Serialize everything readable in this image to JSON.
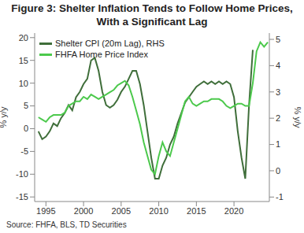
{
  "chart_data": {
    "type": "line",
    "title": "Figure 3: Shelter Inflation Tends to Follow Home Prices,\nWith a Significant Lag",
    "source": "Source: FHFA, BLS, TD Securities",
    "y_label": "% y/y",
    "y2_label": "% y/y",
    "legend": "upper left",
    "grid": false,
    "x": [
      1994,
      1994.5,
      1995,
      1995.5,
      1996,
      1996.5,
      1997,
      1997.5,
      1998,
      1998.5,
      1999,
      1999.5,
      2000,
      2000.5,
      2001,
      2001.5,
      2002,
      2002.5,
      2003,
      2003.5,
      2004,
      2004.5,
      2005,
      2005.5,
      2006,
      2006.5,
      2007,
      2007.5,
      2008,
      2008.5,
      2009,
      2009.5,
      2010,
      2010.5,
      2011,
      2011.5,
      2012,
      2012.5,
      2013,
      2013.5,
      2014,
      2014.5,
      2015,
      2015.5,
      2016,
      2016.5,
      2017,
      2017.5,
      2018,
      2018.5,
      2019,
      2019.5,
      2020,
      2020.5,
      2021,
      2021.5,
      2022,
      2022.5,
      2023,
      2023.5,
      2024,
      2024.5
    ],
    "xlim": [
      1993.5,
      2024.7
    ],
    "xticks": [
      1995,
      2000,
      2005,
      2010,
      2015,
      2020
    ],
    "ylim": [
      -16,
      21
    ],
    "yticks": [
      -15,
      -10,
      -5,
      0,
      5,
      10,
      15,
      20
    ],
    "y2lim": [
      -1.17,
      5.24
    ],
    "y2ticks": [
      -1,
      0,
      1,
      2,
      3,
      4,
      5
    ],
    "series": [
      {
        "name": "Shelter CPI (20m Lag), RHS",
        "color": "#3f6e3a",
        "axis": "y2",
        "values": [
          1.5,
          1.2,
          1.3,
          1.5,
          1.8,
          1.7,
          2,
          2.2,
          2.5,
          2.3,
          2.8,
          3,
          3.3,
          3.5,
          4.2,
          4.3,
          3.8,
          3,
          2.5,
          2.4,
          2.5,
          2.7,
          3,
          3.2,
          3.5,
          3.8,
          3.8,
          3.3,
          2.5,
          1.5,
          0.5,
          -0.3,
          -0.3,
          0.2,
          0.5,
          1,
          1.3,
          1.8,
          2.2,
          2.6,
          2.8,
          3,
          3.2,
          3.3,
          3.4,
          3.3,
          3.4,
          3.3,
          3.4,
          3.3,
          3.4,
          3.3,
          2.8,
          1.5,
          0.5,
          -0.3,
          2.5,
          4.6,
          null,
          null,
          null,
          null
        ]
      },
      {
        "name": "FHFA Home Price Index",
        "color": "#4cc94c",
        "values": [
          2.5,
          2,
          1.5,
          2.5,
          3,
          3,
          3,
          3.5,
          5,
          5.5,
          6,
          6,
          7,
          6.5,
          7.5,
          7,
          6.5,
          7,
          7.5,
          8,
          8.5,
          9.5,
          10,
          10.5,
          9.5,
          7,
          4,
          1,
          -3,
          -6,
          -9,
          -10,
          -6,
          -3,
          -5,
          -6,
          -3,
          0,
          3,
          6,
          7,
          5.5,
          5,
          5.5,
          6,
          6,
          6.5,
          6.5,
          6.5,
          6,
          5,
          4.5,
          5,
          5.5,
          5.5,
          5,
          5,
          10,
          17,
          19,
          18,
          19
        ]
      }
    ]
  }
}
